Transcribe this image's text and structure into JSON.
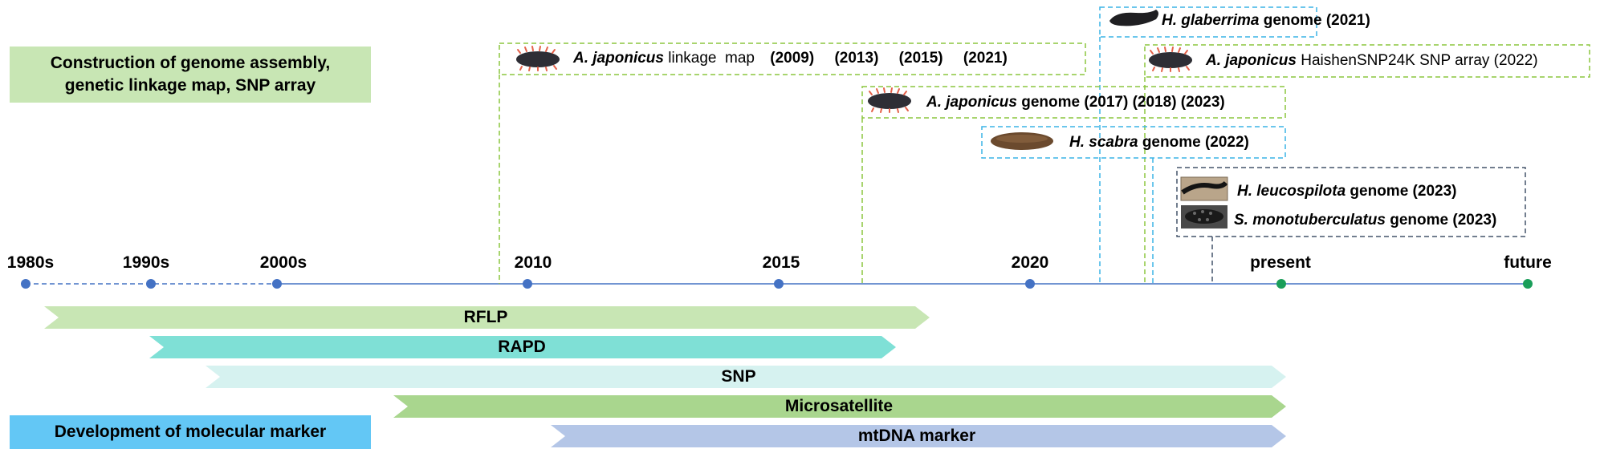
{
  "categories": {
    "genome": [
      "Construction of genome assembly,",
      "genetic linkage map, SNP array"
    ],
    "marker": "Development of molecular marker"
  },
  "timeline": {
    "ticks": [
      "1980s",
      "1990s",
      "2000s",
      "2010",
      "2015",
      "2020",
      "present",
      "future"
    ]
  },
  "events": [
    {
      "species": "A. japonicus",
      "rest": "linkage  map",
      "years": [
        "(2009)",
        "(2013)",
        "(2015)",
        "(2021)"
      ]
    },
    {
      "species": "H. glaberrima",
      "rest": "genome (2021)",
      "years": []
    },
    {
      "species": "A. japonicus",
      "rest": "HaishenSNP24K SNP array (2022)",
      "years": []
    },
    {
      "species": "A. japonicus",
      "rest": "genome",
      "years": [
        "(2017)",
        "(2018)",
        "(2023)"
      ]
    },
    {
      "species": "H. scabra",
      "rest": "genome (2022)",
      "years": []
    },
    {
      "species": "H. leucospilota",
      "rest": "genome (2023)",
      "years": []
    },
    {
      "species": "S. monotuberculatus",
      "rest": "genome (2023)",
      "years": []
    }
  ],
  "markers": [
    {
      "label": "RFLP",
      "color": "#c8e6b4"
    },
    {
      "label": "RAPD",
      "color": "#7fe0d6"
    },
    {
      "label": "SNP",
      "color": "#d6f2f0"
    },
    {
      "label": "Microsatellite",
      "color": "#a9d68e"
    },
    {
      "label": "mtDNA marker",
      "color": "#b4c6e7"
    }
  ],
  "colors": {
    "genome_header": "#c8e6b4",
    "marker_header": "#63c7f5",
    "timeline": "#4472c4",
    "green_dash": "#8cc63f",
    "cyan_dash": "#3ab4e6",
    "gray_dash": "#44546a",
    "present_dot": "#1a9e5a"
  },
  "icons": [
    "sea-cucumber-icon-japonicus",
    "sea-cucumber-icon-glaberrima",
    "sea-cucumber-icon-scabra",
    "sea-cucumber-photo-leucospilota",
    "sea-cucumber-photo-monotuberculatus"
  ]
}
